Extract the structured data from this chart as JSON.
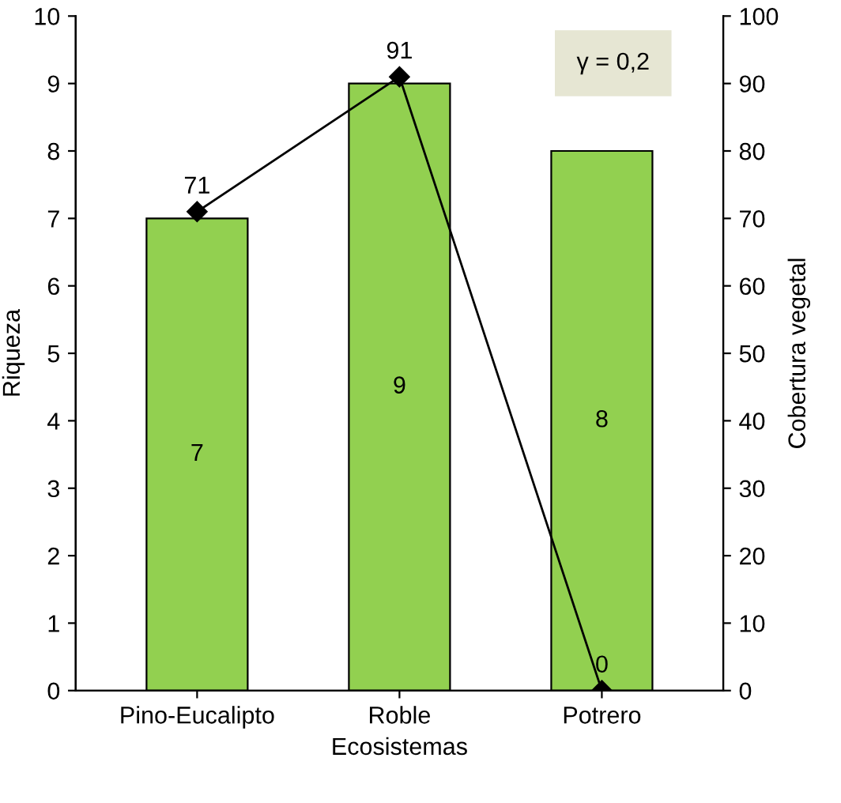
{
  "chart_data": {
    "type": "bar",
    "xlabel": "Ecosistemas",
    "ylabel": "Riqueza",
    "y2label": "Cobertura vegetal",
    "categories": [
      "Pino-Eucalipto",
      "Roble",
      "Potrero"
    ],
    "series": [
      {
        "color": "#92d050",
        "values": [
          7,
          9,
          8
        ]
      },
      {
        "type": "line",
        "axis": "y2",
        "color": "#000000",
        "values": [
          71,
          91,
          0
        ],
        "marker": "diamond",
        "line_style": "solid"
      }
    ],
    "ylim": [
      0,
      10
    ],
    "yticks": [
      0,
      1,
      2,
      3,
      4,
      5,
      6,
      7,
      8,
      9,
      10
    ],
    "y2lim": [
      0,
      100
    ],
    "y2ticks": [
      0,
      10,
      20,
      30,
      40,
      50,
      60,
      70,
      80,
      90,
      100
    ],
    "data_labels": true,
    "grid": false,
    "annotations": [
      "γ = 0,2"
    ]
  }
}
